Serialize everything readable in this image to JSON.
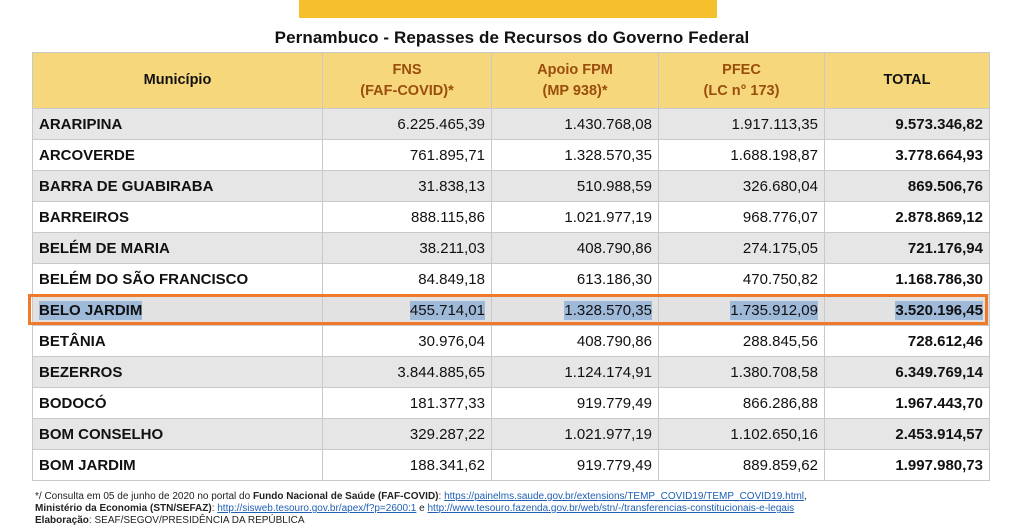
{
  "title": "Pernambuco - Repasses de Recursos do Governo Federal",
  "headers": {
    "municipio": "Município",
    "fns_top": "FNS",
    "fns_sub": "(FAF-COVID)*",
    "fpm_top": "Apoio FPM",
    "fpm_sub": "(MP 938)*",
    "pfec_top": "PFEC",
    "pfec_sub": "(LC n° 173)",
    "total": "TOTAL"
  },
  "rows": [
    {
      "municipio": "ARARIPINA",
      "fns": "6.225.465,39",
      "fpm": "1.430.768,08",
      "pfec": "1.917.113,35",
      "total": "9.573.346,82"
    },
    {
      "municipio": "ARCOVERDE",
      "fns": "761.895,71",
      "fpm": "1.328.570,35",
      "pfec": "1.688.198,87",
      "total": "3.778.664,93"
    },
    {
      "municipio": "BARRA DE GUABIRABA",
      "fns": "31.838,13",
      "fpm": "510.988,59",
      "pfec": "326.680,04",
      "total": "869.506,76"
    },
    {
      "municipio": "BARREIROS",
      "fns": "888.115,86",
      "fpm": "1.021.977,19",
      "pfec": "968.776,07",
      "total": "2.878.869,12"
    },
    {
      "municipio": "BELÉM DE MARIA",
      "fns": "38.211,03",
      "fpm": "408.790,86",
      "pfec": "274.175,05",
      "total": "721.176,94"
    },
    {
      "municipio": "BELÉM DO SÃO FRANCISCO",
      "fns": "84.849,18",
      "fpm": "613.186,30",
      "pfec": "470.750,82",
      "total": "1.168.786,30"
    },
    {
      "municipio": "BELO JARDIM",
      "fns": "455.714,01",
      "fpm": "1.328.570,35",
      "pfec": "1.735.912,09",
      "total": "3.520.196,45"
    },
    {
      "municipio": "BETÂNIA",
      "fns": "30.976,04",
      "fpm": "408.790,86",
      "pfec": "288.845,56",
      "total": "728.612,46"
    },
    {
      "municipio": "BEZERROS",
      "fns": "3.844.885,65",
      "fpm": "1.124.174,91",
      "pfec": "1.380.708,58",
      "total": "6.349.769,14"
    },
    {
      "municipio": "BODOCÓ",
      "fns": "181.377,33",
      "fpm": "919.779,49",
      "pfec": "866.286,88",
      "total": "1.967.443,70"
    },
    {
      "municipio": "BOM CONSELHO",
      "fns": "329.287,22",
      "fpm": "1.021.977,19",
      "pfec": "1.102.650,16",
      "total": "2.453.914,57"
    },
    {
      "municipio": "BOM JARDIM",
      "fns": "188.341,62",
      "fpm": "919.779,49",
      "pfec": "889.859,62",
      "total": "1.997.980,73"
    }
  ],
  "highlighted_row": "BELO JARDIM",
  "footnote": {
    "line1_prefix": "*/ Consulta em 05 de junho de 2020 no portal do ",
    "line1_bold": "Fundo Nacional de Saúde (FAF-COVID)",
    "line1_sep": ": ",
    "line1_link": "https://painelms.saude.gov.br/extensions/TEMP_COVID19/TEMP_COVID19.html",
    "line1_end": ",",
    "line2_bold": "Ministério da Economia (STN/SEFAZ)",
    "line2_sep": ": ",
    "line2_link1": "http://sisweb.tesouro.gov.br/apex/f?p=2600:1",
    "line2_mid": " e ",
    "line2_link2": "http://www.tesouro.fazenda.gov.br/web/stn/-/transferencias-constitucionais-e-legais",
    "line3_bold": "Elaboração",
    "line3_text": ": SEAF/SEGOV/PRESIDÊNCIA DA REPÚBLICA"
  },
  "colors": {
    "header_bg": "#f6d77c",
    "header_accent_text": "#9a4d0c",
    "banner": "#f5c02b",
    "highlight_border": "#ef7a2b",
    "selection": "#9fb9d9"
  }
}
